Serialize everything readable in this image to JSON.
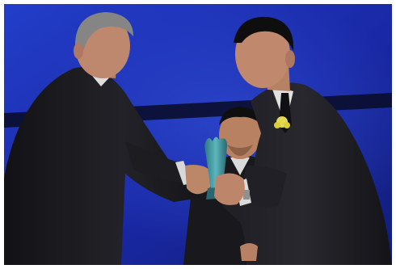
{
  "photo": {
    "subject": "award-ceremony-photo",
    "colors": {
      "backdrop": "#1b2bb0",
      "backdrop_light": "#2f4be0",
      "stage_band": "#0b1030",
      "suit_dark": "#1c1c22",
      "shirt": "#f2f2f2",
      "skin": "#c98f6f",
      "hair_gray": "#8a8a8a",
      "hair_black": "#111111",
      "trophy": "#4aa6b0",
      "boutonniere": "#f2e65a"
    }
  }
}
